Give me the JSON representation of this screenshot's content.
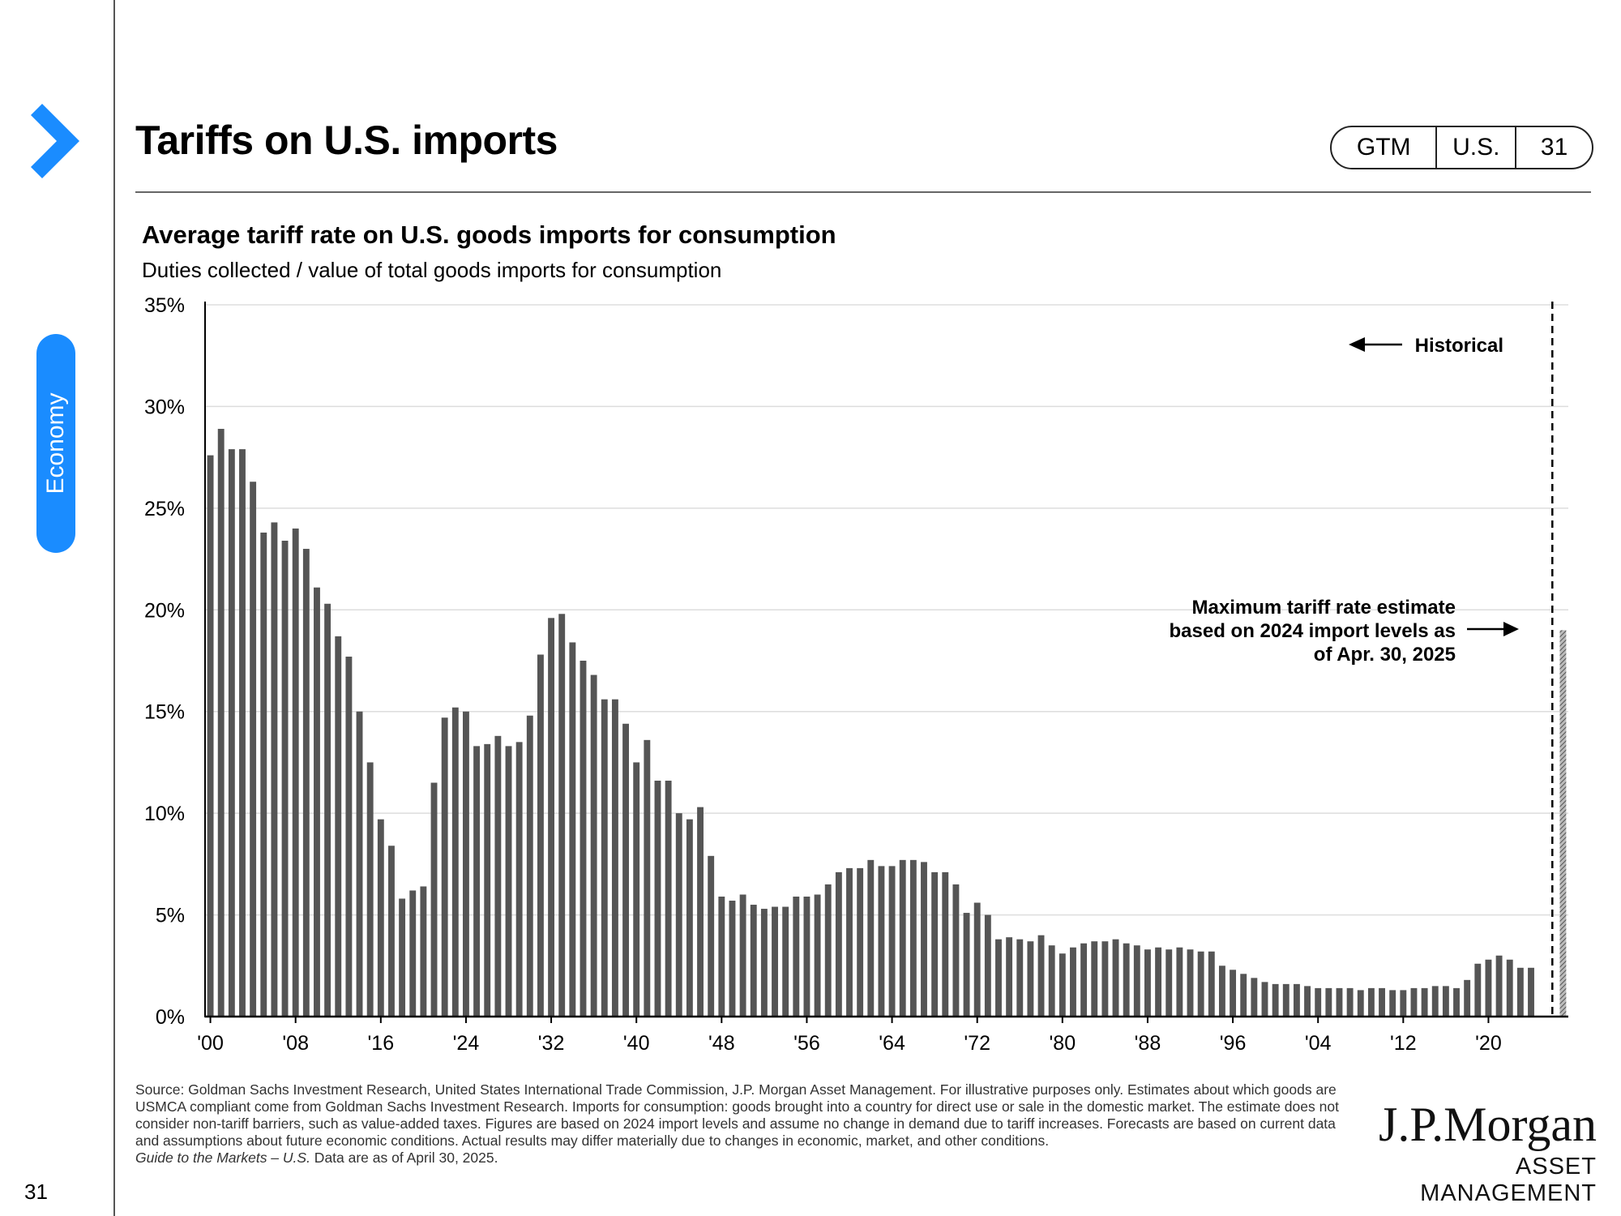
{
  "page": {
    "title": "Tariffs on U.S. imports",
    "badge": [
      "GTM",
      "U.S.",
      "31"
    ],
    "side_tab": "Economy",
    "page_number": "31"
  },
  "colors": {
    "accent": "#1a8cff",
    "bar": "#555555",
    "forecast_hatch": "#777777"
  },
  "icons": [
    "chevron-right-icon",
    "arrow-left-icon",
    "arrow-right-icon"
  ],
  "chart_data": {
    "type": "bar",
    "title": "Average tariff rate on U.S. goods imports for consumption",
    "subtitle": "Duties collected / value of total goods imports for consumption",
    "xlabel": "",
    "ylabel": "",
    "ylim": [
      0,
      35
    ],
    "yticks": [
      "0%",
      "5%",
      "10%",
      "15%",
      "20%",
      "25%",
      "30%",
      "35%"
    ],
    "xticks": [
      "'00",
      "'08",
      "'16",
      "'24",
      "'32",
      "'40",
      "'48",
      "'56",
      "'64",
      "'72",
      "'80",
      "'88",
      "'96",
      "'04",
      "'12",
      "'20"
    ],
    "grid": true,
    "x": [
      1900,
      1901,
      1902,
      1903,
      1904,
      1905,
      1906,
      1907,
      1908,
      1909,
      1910,
      1911,
      1912,
      1913,
      1914,
      1915,
      1916,
      1917,
      1918,
      1919,
      1920,
      1921,
      1922,
      1923,
      1924,
      1925,
      1926,
      1927,
      1928,
      1929,
      1930,
      1931,
      1932,
      1933,
      1934,
      1935,
      1936,
      1937,
      1938,
      1939,
      1940,
      1941,
      1942,
      1943,
      1944,
      1945,
      1946,
      1947,
      1948,
      1949,
      1950,
      1951,
      1952,
      1953,
      1954,
      1955,
      1956,
      1957,
      1958,
      1959,
      1960,
      1961,
      1962,
      1963,
      1964,
      1965,
      1966,
      1967,
      1968,
      1969,
      1970,
      1971,
      1972,
      1973,
      1974,
      1975,
      1976,
      1977,
      1978,
      1979,
      1980,
      1981,
      1982,
      1983,
      1984,
      1985,
      1986,
      1987,
      1988,
      1989,
      1990,
      1991,
      1992,
      1993,
      1994,
      1995,
      1996,
      1997,
      1998,
      1999,
      2000,
      2001,
      2002,
      2003,
      2004,
      2005,
      2006,
      2007,
      2008,
      2009,
      2010,
      2011,
      2012,
      2013,
      2014,
      2015,
      2016,
      2017,
      2018,
      2019,
      2020,
      2021,
      2022,
      2023,
      2024
    ],
    "values": [
      27.6,
      28.9,
      27.9,
      27.9,
      26.3,
      23.8,
      24.3,
      23.4,
      24.0,
      23.0,
      21.1,
      20.3,
      18.7,
      17.7,
      15.0,
      12.5,
      9.7,
      8.4,
      5.8,
      6.2,
      6.4,
      11.5,
      14.7,
      15.2,
      15.0,
      13.3,
      13.4,
      13.8,
      13.3,
      13.5,
      14.8,
      17.8,
      19.6,
      19.8,
      18.4,
      17.5,
      16.8,
      15.6,
      15.6,
      14.4,
      12.5,
      13.6,
      11.6,
      11.6,
      10.0,
      9.7,
      10.3,
      7.9,
      5.9,
      5.7,
      6.0,
      5.5,
      5.3,
      5.4,
      5.4,
      5.9,
      5.9,
      6.0,
      6.5,
      7.1,
      7.3,
      7.3,
      7.7,
      7.4,
      7.4,
      7.7,
      7.7,
      7.6,
      7.1,
      7.1,
      6.5,
      5.1,
      5.6,
      5.0,
      3.8,
      3.9,
      3.8,
      3.7,
      4.0,
      3.5,
      3.1,
      3.4,
      3.6,
      3.7,
      3.7,
      3.8,
      3.6,
      3.5,
      3.3,
      3.4,
      3.3,
      3.4,
      3.3,
      3.2,
      3.2,
      2.5,
      2.3,
      2.1,
      1.9,
      1.7,
      1.6,
      1.6,
      1.6,
      1.5,
      1.4,
      1.4,
      1.4,
      1.4,
      1.3,
      1.4,
      1.4,
      1.3,
      1.3,
      1.4,
      1.4,
      1.5,
      1.5,
      1.4,
      1.8,
      2.6,
      2.8,
      3.0,
      2.8,
      2.4,
      2.4
    ],
    "forecast": {
      "value": 19.0,
      "label": "Maximum tariff rate estimate based on 2024 import levels as of Apr. 30, 2025"
    },
    "annotations": {
      "historical": "Historical",
      "max_estimate": [
        "Maximum tariff rate estimate",
        "based on 2024 import levels as",
        "of Apr. 30, 2025"
      ]
    }
  },
  "footnote": {
    "text": "Source: Goldman Sachs Investment Research, United States International Trade Commission, J.P. Morgan Asset Management. For illustrative purposes only. Estimates about which goods are USMCA compliant come from Goldman Sachs Investment Research. Imports for consumption: goods brought into a country for direct use or sale in the domestic market. The estimate does not consider non-tariff barriers, such as value-added taxes. Figures are based on 2024 import levels and assume no change in demand due to tariff increases. Forecasts are based on current data and assumptions about future economic conditions. Actual results may differ materially due to changes in economic, market, and other conditions.",
    "guide_italic": "Guide to the Markets – U.S.",
    "asof": " Data are as of April 30, 2025."
  },
  "logo": {
    "name": "J.P.Morgan",
    "sub": "ASSET MANAGEMENT"
  }
}
